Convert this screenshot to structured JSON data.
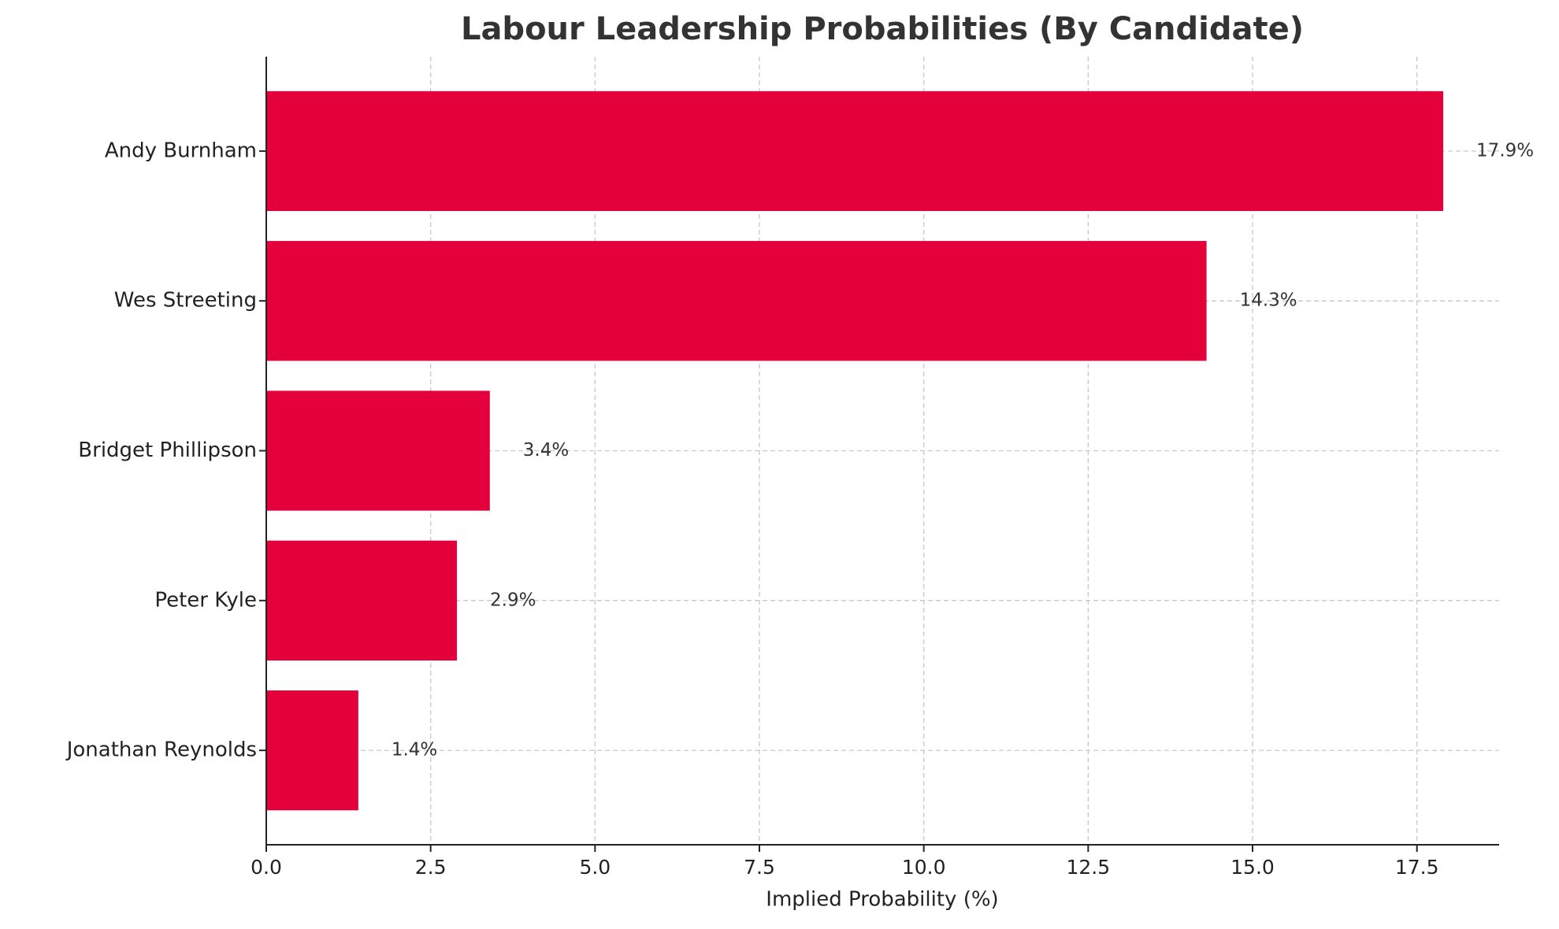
{
  "chart_data": {
    "type": "barh",
    "title": "Labour Leadership Probabilities (By Candidate)",
    "xlabel": "Implied Probability (%)",
    "categories": [
      "Andy Burnham",
      "Wes Streeting",
      "Bridget Phillipson",
      "Peter Kyle",
      "Jonathan Reynolds"
    ],
    "values": [
      17.9,
      14.3,
      3.4,
      2.9,
      1.4
    ],
    "value_labels": [
      "17.9%",
      "14.3%",
      "3.4%",
      "2.9%",
      "1.4%"
    ],
    "color": "#e4003b",
    "xlim": [
      0,
      18.75
    ],
    "xticks": [
      {
        "value": 0,
        "label": "0.0"
      },
      2.5,
      {
        "value": 5,
        "label": "5.0"
      },
      7.5,
      {
        "value": 10,
        "label": "10.0"
      },
      12.5,
      {
        "value": 15,
        "label": "15.0"
      },
      17.5
    ],
    "grid": true
  }
}
